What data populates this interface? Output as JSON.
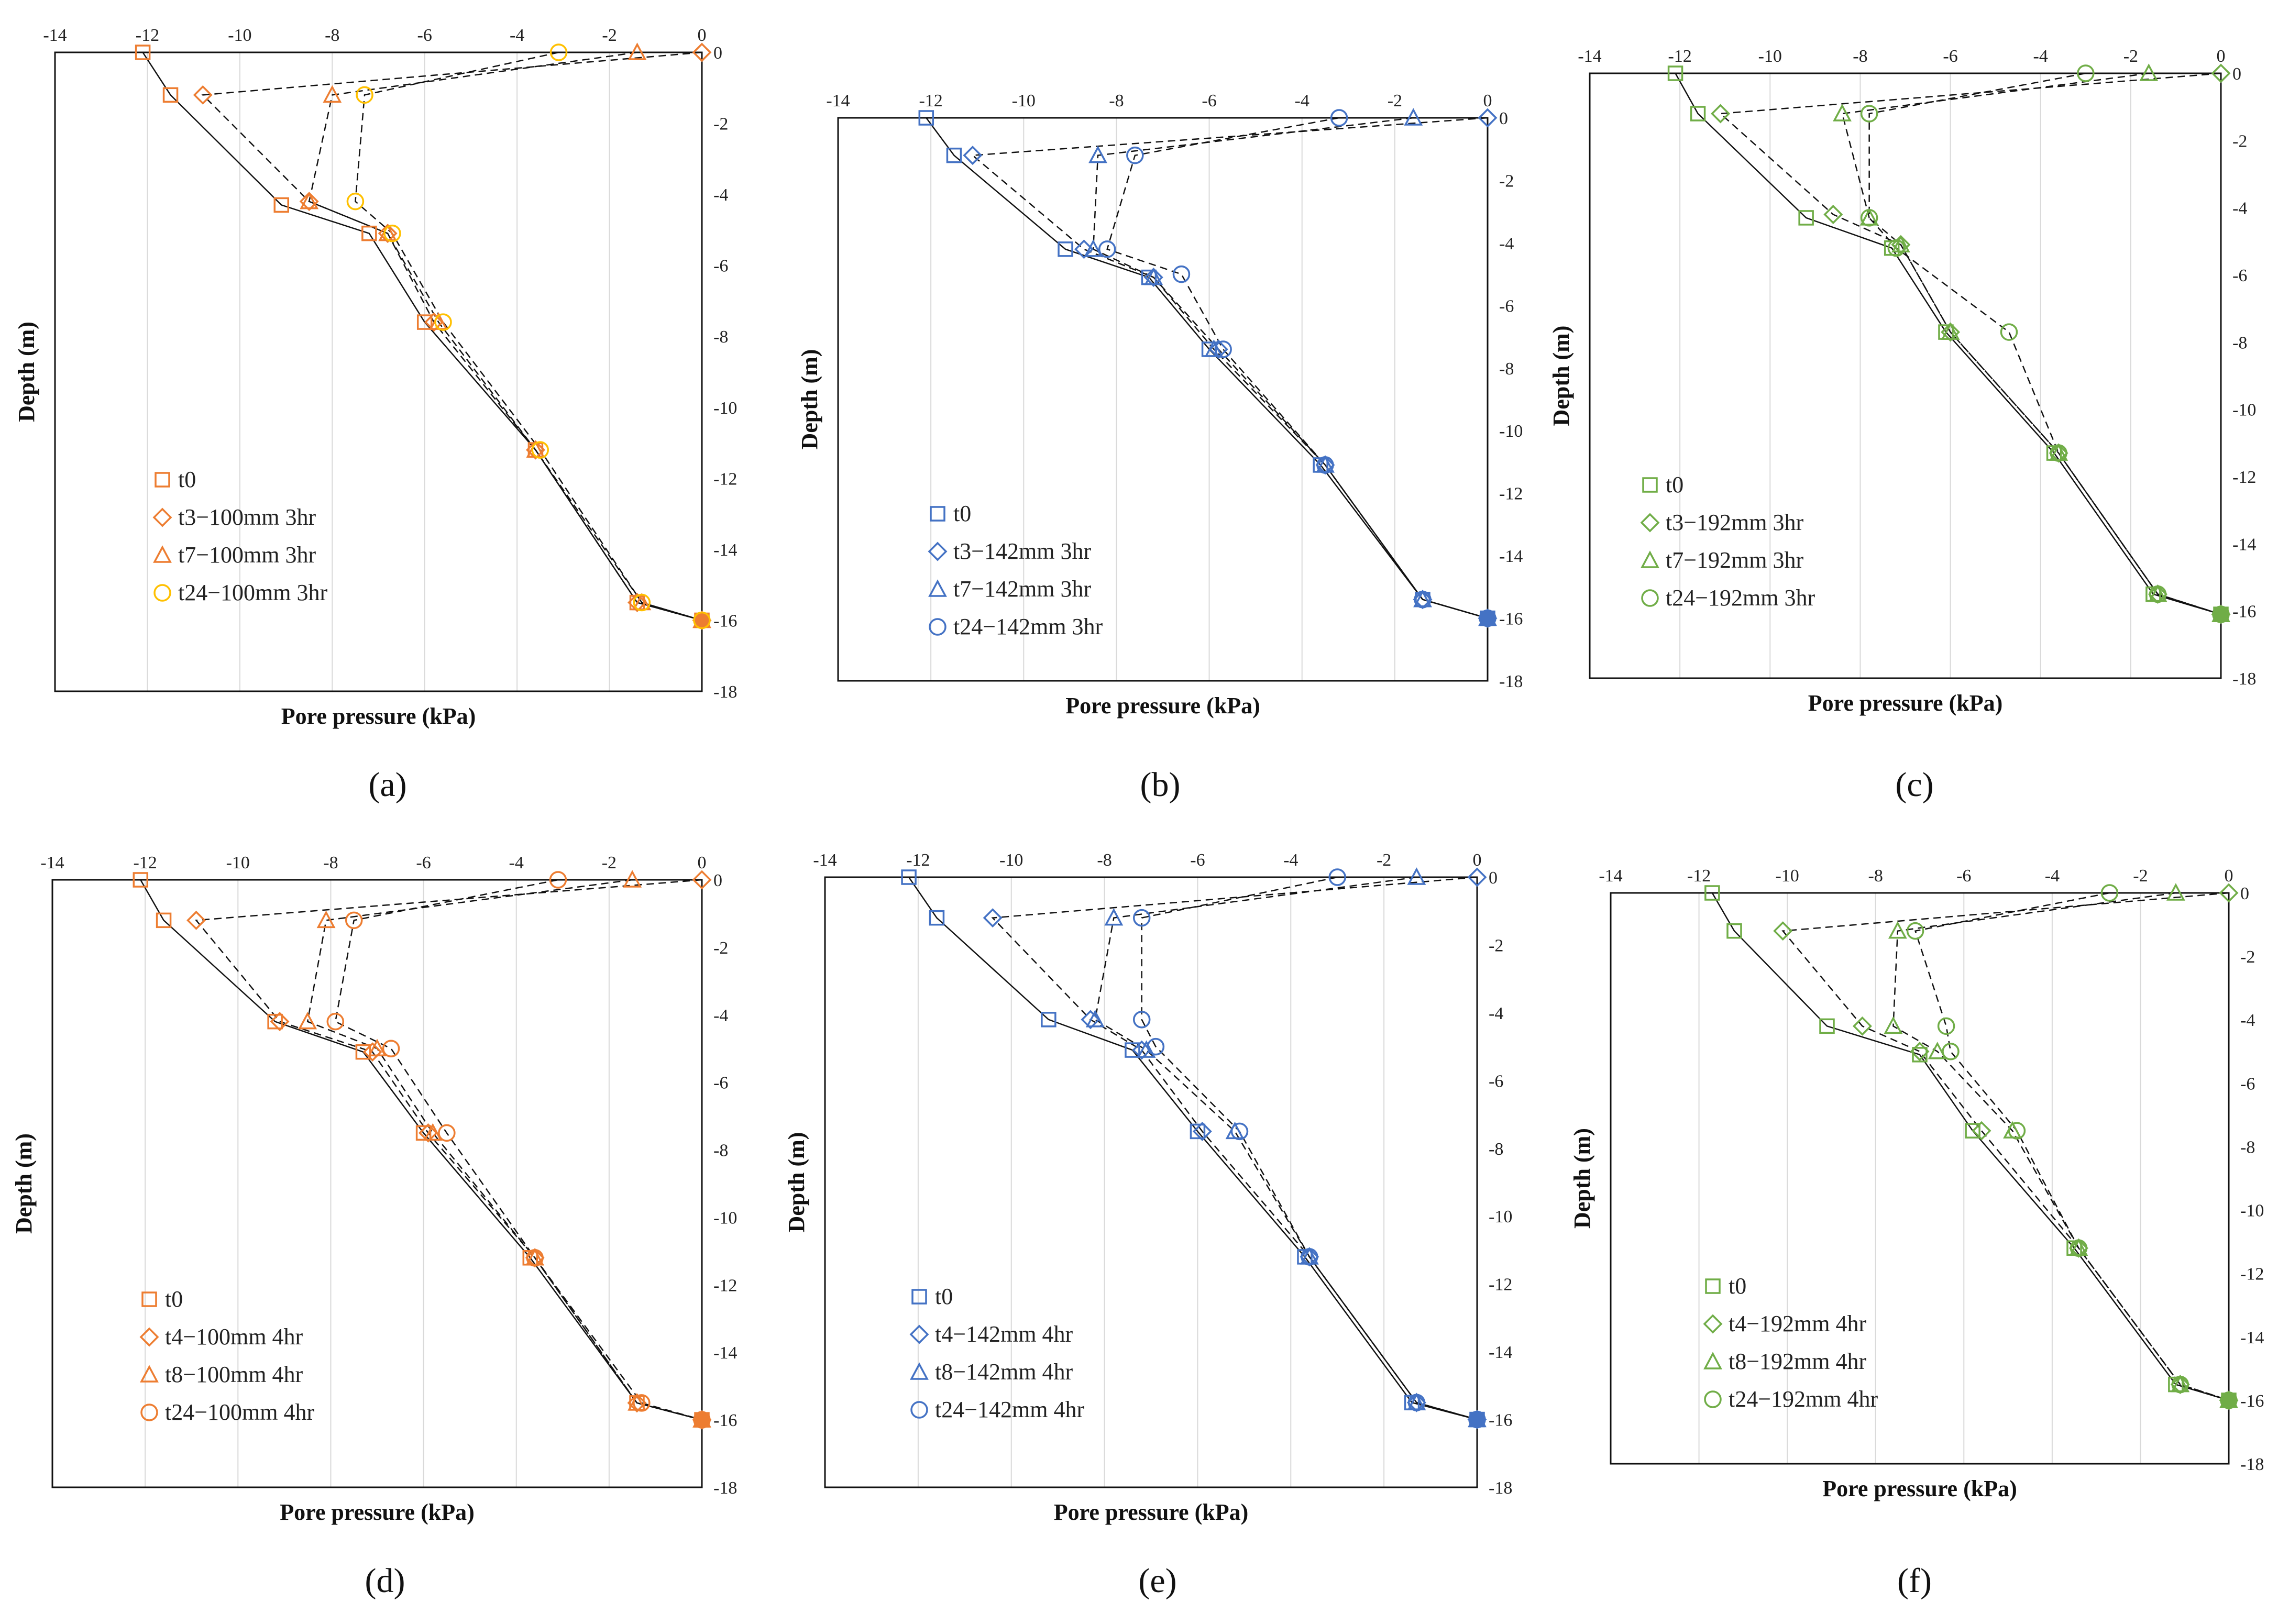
{
  "figure": {
    "captions": [
      "(a)",
      "(b)",
      "(c)",
      "(d)",
      "(e)",
      "(f)"
    ]
  },
  "chart_data": [
    {
      "type": "scatter",
      "panel": "(a)",
      "color": "#ED7D31",
      "color_alt": "#FFC000",
      "xlabel": "Pore pressure (kPa)",
      "ylabel": "Depth (m)",
      "xlim": [
        -14,
        0
      ],
      "ylim": [
        -18,
        0
      ],
      "xticks": [
        -14,
        -12,
        -10,
        -8,
        -6,
        -4,
        -2,
        0
      ],
      "yticks": [
        0,
        -2,
        -4,
        -6,
        -8,
        -10,
        -12,
        -14,
        -16,
        -18
      ],
      "series": [
        {
          "name": "t0",
          "marker": "square",
          "line": "solid",
          "x": [
            -12.1,
            -11.5,
            -9.1,
            -7.2,
            -6.0,
            -3.6,
            -1.4,
            0
          ],
          "y": [
            0,
            -1.2,
            -4.3,
            -5.1,
            -7.6,
            -11.2,
            -15.5,
            -16.0
          ]
        },
        {
          "name": "t3−100mm 3hr",
          "marker": "diamond",
          "line": "dashed",
          "x": [
            0,
            -10.8,
            -8.5,
            -6.8,
            -5.8,
            -3.6,
            -1.4,
            0
          ],
          "y": [
            0,
            -1.2,
            -4.2,
            -5.1,
            -7.6,
            -11.2,
            -15.5,
            -16.0
          ]
        },
        {
          "name": "t7−100mm 3hr",
          "marker": "triangle",
          "line": "dashed",
          "x": [
            -1.4,
            -8.0,
            -8.5,
            -6.8,
            -5.7,
            -3.6,
            -1.3,
            0
          ],
          "y": [
            0,
            -1.2,
            -4.2,
            -5.1,
            -7.6,
            -11.2,
            -15.5,
            -16.0
          ]
        },
        {
          "name": "t24−100mm 3hr",
          "marker": "circle",
          "line": "dashed",
          "x": [
            -3.1,
            -7.3,
            -7.5,
            -6.7,
            -5.6,
            -3.5,
            -1.3,
            0
          ],
          "y": [
            0,
            -1.2,
            -4.2,
            -5.1,
            -7.6,
            -11.2,
            -15.5,
            -16.0
          ]
        }
      ]
    },
    {
      "type": "scatter",
      "panel": "(b)",
      "color": "#4472C4",
      "color_alt": "#4472C4",
      "xlabel": "Pore pressure (kPa)",
      "ylabel": "Depth (m)",
      "xlim": [
        -14,
        0
      ],
      "ylim": [
        -18,
        0
      ],
      "xticks": [
        -14,
        -12,
        -10,
        -8,
        -6,
        -4,
        -2,
        0
      ],
      "yticks": [
        0,
        -2,
        -4,
        -6,
        -8,
        -10,
        -12,
        -14,
        -16,
        -18
      ],
      "series": [
        {
          "name": "t0",
          "marker": "square",
          "line": "solid",
          "x": [
            -12.1,
            -11.5,
            -9.1,
            -7.3,
            -6.0,
            -3.6,
            -1.4,
            0
          ],
          "y": [
            0,
            -1.2,
            -4.2,
            -5.1,
            -7.4,
            -11.1,
            -15.4,
            -16.0
          ]
        },
        {
          "name": "t3−142mm 3hr",
          "marker": "diamond",
          "line": "dashed",
          "x": [
            0,
            -11.1,
            -8.7,
            -7.2,
            -5.8,
            -3.5,
            -1.4,
            0
          ],
          "y": [
            0,
            -1.2,
            -4.2,
            -5.1,
            -7.4,
            -11.1,
            -15.4,
            -16.0
          ]
        },
        {
          "name": "t7−142mm 3hr",
          "marker": "triangle",
          "line": "dashed",
          "x": [
            -1.6,
            -8.4,
            -8.5,
            -7.2,
            -5.9,
            -3.5,
            -1.4,
            0
          ],
          "y": [
            0,
            -1.2,
            -4.2,
            -5.1,
            -7.4,
            -11.1,
            -15.4,
            -16.0
          ]
        },
        {
          "name": "t24−142mm 3hr",
          "marker": "circle",
          "line": "dashed",
          "x": [
            -3.2,
            -7.6,
            -8.2,
            -6.6,
            -5.7,
            -3.5,
            -1.4,
            0
          ],
          "y": [
            0,
            -1.2,
            -4.2,
            -5.0,
            -7.4,
            -11.1,
            -15.4,
            -16.0
          ]
        }
      ]
    },
    {
      "type": "scatter",
      "panel": "(c)",
      "color": "#70AD47",
      "color_alt": "#70AD47",
      "xlabel": "Pore pressure (kPa)",
      "ylabel": "Depth (m)",
      "xlim": [
        -14,
        0
      ],
      "ylim": [
        -18,
        0
      ],
      "xticks": [
        -14,
        -12,
        -10,
        -8,
        -6,
        -4,
        -2,
        0
      ],
      "yticks": [
        0,
        -2,
        -4,
        -6,
        -8,
        -10,
        -12,
        -14,
        -16,
        -18
      ],
      "series": [
        {
          "name": "t0",
          "marker": "square",
          "line": "solid",
          "x": [
            -12.1,
            -11.6,
            -9.2,
            -7.3,
            -6.1,
            -3.7,
            -1.5,
            0
          ],
          "y": [
            0,
            -1.2,
            -4.3,
            -5.2,
            -7.7,
            -11.3,
            -15.5,
            -16.1
          ]
        },
        {
          "name": "t3−192mm 3hr",
          "marker": "diamond",
          "line": "dashed",
          "x": [
            0,
            -11.1,
            -8.6,
            -7.1,
            -6.0,
            -3.6,
            -1.4,
            0
          ],
          "y": [
            0,
            -1.2,
            -4.2,
            -5.1,
            -7.7,
            -11.3,
            -15.5,
            -16.1
          ]
        },
        {
          "name": "t7−192mm 3hr",
          "marker": "triangle",
          "line": "dashed",
          "x": [
            -1.6,
            -8.4,
            -7.8,
            -7.1,
            -6.0,
            -3.6,
            -1.4,
            0
          ],
          "y": [
            0,
            -1.2,
            -4.3,
            -5.1,
            -7.7,
            -11.3,
            -15.5,
            -16.1
          ]
        },
        {
          "name": "t24−192mm 3hr",
          "marker": "circle",
          "line": "dashed",
          "x": [
            -3.0,
            -7.8,
            -7.8,
            -7.2,
            -4.7,
            -3.6,
            -1.4,
            0
          ],
          "y": [
            0,
            -1.2,
            -4.3,
            -5.2,
            -7.7,
            -11.3,
            -15.5,
            -16.1
          ]
        }
      ]
    },
    {
      "type": "scatter",
      "panel": "(d)",
      "color": "#ED7D31",
      "color_alt": "#ED7D31",
      "xlabel": "Pore pressure (kPa)",
      "ylabel": "Depth (m)",
      "xlim": [
        -14,
        0
      ],
      "ylim": [
        -18,
        0
      ],
      "xticks": [
        -14,
        -12,
        -10,
        -8,
        -6,
        -4,
        -2,
        0
      ],
      "yticks": [
        0,
        -2,
        -4,
        -6,
        -8,
        -10,
        -12,
        -14,
        -16,
        -18
      ],
      "series": [
        {
          "name": "t0",
          "marker": "square",
          "line": "solid",
          "x": [
            -12.1,
            -11.6,
            -9.2,
            -7.3,
            -6.0,
            -3.7,
            -1.4,
            0
          ],
          "y": [
            0,
            -1.2,
            -4.2,
            -5.1,
            -7.5,
            -11.2,
            -15.5,
            -16.0
          ]
        },
        {
          "name": "t4−100mm 4hr",
          "marker": "diamond",
          "line": "dashed",
          "x": [
            0,
            -10.9,
            -9.1,
            -7.1,
            -5.9,
            -3.6,
            -1.4,
            0
          ],
          "y": [
            0,
            -1.2,
            -4.2,
            -5.1,
            -7.5,
            -11.2,
            -15.5,
            -16.0
          ]
        },
        {
          "name": "t8−100mm 4hr",
          "marker": "triangle",
          "line": "dashed",
          "x": [
            -1.5,
            -8.1,
            -8.5,
            -7.0,
            -5.8,
            -3.6,
            -1.4,
            0
          ],
          "y": [
            0,
            -1.2,
            -4.2,
            -5.0,
            -7.5,
            -11.2,
            -15.5,
            -16.0
          ]
        },
        {
          "name": "t24−100mm 4hr",
          "marker": "circle",
          "line": "dashed",
          "x": [
            -3.1,
            -7.5,
            -7.9,
            -6.7,
            -5.5,
            -3.6,
            -1.3,
            0
          ],
          "y": [
            0,
            -1.2,
            -4.2,
            -5.0,
            -7.5,
            -11.2,
            -15.5,
            -16.0
          ]
        }
      ]
    },
    {
      "type": "scatter",
      "panel": "(e)",
      "color": "#4472C4",
      "color_alt": "#4472C4",
      "xlabel": "Pore pressure (kPa)",
      "ylabel": "Depth (m)",
      "xlim": [
        -14,
        0
      ],
      "ylim": [
        -18,
        0
      ],
      "xticks": [
        -14,
        -12,
        -10,
        -8,
        -6,
        -4,
        -2,
        0
      ],
      "yticks": [
        0,
        -2,
        -4,
        -6,
        -8,
        -10,
        -12,
        -14,
        -16,
        -18
      ],
      "series": [
        {
          "name": "t0",
          "marker": "square",
          "line": "solid",
          "x": [
            -12.2,
            -11.6,
            -9.2,
            -7.4,
            -6.0,
            -3.7,
            -1.4,
            0
          ],
          "y": [
            0,
            -1.2,
            -4.2,
            -5.1,
            -7.5,
            -11.2,
            -15.5,
            -16.0
          ]
        },
        {
          "name": "t4−142mm 4hr",
          "marker": "diamond",
          "line": "dashed",
          "x": [
            0,
            -10.4,
            -8.3,
            -7.2,
            -5.9,
            -3.6,
            -1.3,
            0
          ],
          "y": [
            0,
            -1.2,
            -4.2,
            -5.1,
            -7.5,
            -11.2,
            -15.5,
            -16.0
          ]
        },
        {
          "name": "t8−142mm 4hr",
          "marker": "triangle",
          "line": "dashed",
          "x": [
            -1.3,
            -7.8,
            -8.2,
            -7.1,
            -5.2,
            -3.6,
            -1.3,
            0
          ],
          "y": [
            0,
            -1.2,
            -4.2,
            -5.1,
            -7.5,
            -11.2,
            -15.5,
            -16.0
          ]
        },
        {
          "name": "t24−142mm 4hr",
          "marker": "circle",
          "line": "dashed",
          "x": [
            -3.0,
            -7.2,
            -7.2,
            -6.9,
            -5.1,
            -3.6,
            -1.3,
            0
          ],
          "y": [
            0,
            -1.2,
            -4.2,
            -5.0,
            -7.5,
            -11.2,
            -15.5,
            -16.0
          ]
        }
      ]
    },
    {
      "type": "scatter",
      "panel": "(f)",
      "color": "#70AD47",
      "color_alt": "#70AD47",
      "xlabel": "Pore pressure (kPa)",
      "ylabel": "Depth (m)",
      "xlim": [
        -14,
        0
      ],
      "ylim": [
        -18,
        0
      ],
      "xticks": [
        -14,
        -12,
        -10,
        -8,
        -6,
        -4,
        -2,
        0
      ],
      "yticks": [
        0,
        -2,
        -4,
        -6,
        -8,
        -10,
        -12,
        -14,
        -16,
        -18
      ],
      "series": [
        {
          "name": "t0",
          "marker": "square",
          "line": "solid",
          "x": [
            -11.7,
            -11.2,
            -9.1,
            -7.0,
            -5.8,
            -3.5,
            -1.2,
            0
          ],
          "y": [
            0,
            -1.2,
            -4.2,
            -5.1,
            -7.5,
            -11.2,
            -15.5,
            -16.0
          ]
        },
        {
          "name": "t4−192mm 4hr",
          "marker": "diamond",
          "line": "dashed",
          "x": [
            0,
            -10.1,
            -8.3,
            -7.0,
            -5.6,
            -3.4,
            -1.1,
            0
          ],
          "y": [
            0,
            -1.2,
            -4.2,
            -5.0,
            -7.5,
            -11.2,
            -15.5,
            -16.0
          ]
        },
        {
          "name": "t8−192mm 4hr",
          "marker": "triangle",
          "line": "dashed",
          "x": [
            -1.2,
            -7.5,
            -7.6,
            -6.6,
            -4.9,
            -3.4,
            -1.1,
            0
          ],
          "y": [
            0,
            -1.2,
            -4.2,
            -5.0,
            -7.5,
            -11.2,
            -15.5,
            -16.0
          ]
        },
        {
          "name": "t24−192mm 4hr",
          "marker": "circle",
          "line": "dashed",
          "x": [
            -2.7,
            -7.1,
            -6.4,
            -6.3,
            -4.8,
            -3.4,
            -1.1,
            0
          ],
          "y": [
            0,
            -1.2,
            -4.2,
            -5.0,
            -7.5,
            -11.2,
            -15.5,
            -16.0
          ]
        }
      ]
    }
  ]
}
